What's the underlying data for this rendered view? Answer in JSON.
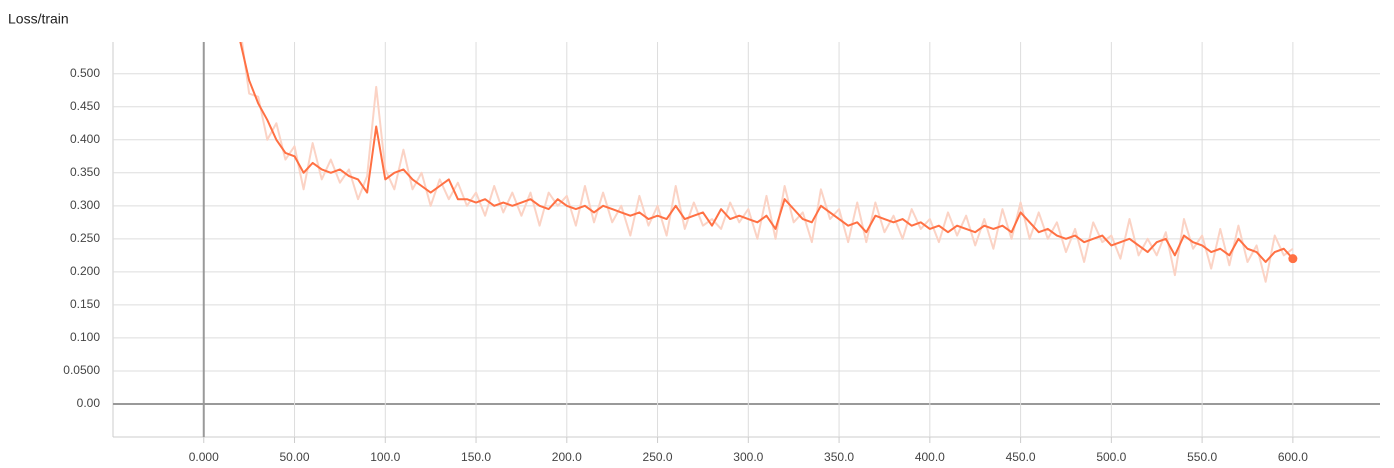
{
  "chart_data": {
    "type": "line",
    "title": "Loss/train",
    "x": [
      20,
      25,
      30,
      35,
      40,
      45,
      50,
      55,
      60,
      65,
      70,
      75,
      80,
      85,
      90,
      95,
      100,
      105,
      110,
      115,
      120,
      125,
      130,
      135,
      140,
      145,
      150,
      155,
      160,
      165,
      170,
      175,
      180,
      185,
      190,
      195,
      200,
      205,
      210,
      215,
      220,
      225,
      230,
      235,
      240,
      245,
      250,
      255,
      260,
      265,
      270,
      275,
      280,
      285,
      290,
      295,
      300,
      305,
      310,
      315,
      320,
      325,
      330,
      335,
      340,
      345,
      350,
      355,
      360,
      365,
      370,
      375,
      380,
      385,
      390,
      395,
      400,
      405,
      410,
      415,
      420,
      425,
      430,
      435,
      440,
      445,
      450,
      455,
      460,
      465,
      470,
      475,
      480,
      485,
      490,
      495,
      500,
      505,
      510,
      515,
      520,
      525,
      530,
      535,
      540,
      545,
      550,
      555,
      560,
      565,
      570,
      575,
      580,
      585,
      590,
      595,
      600
    ],
    "series": [
      {
        "color": "#fbd3c5",
        "values": [
          0.57,
          0.47,
          0.465,
          0.4,
          0.425,
          0.37,
          0.39,
          0.325,
          0.395,
          0.34,
          0.37,
          0.335,
          0.355,
          0.31,
          0.345,
          0.48,
          0.355,
          0.325,
          0.385,
          0.325,
          0.35,
          0.3,
          0.34,
          0.31,
          0.335,
          0.3,
          0.32,
          0.285,
          0.33,
          0.29,
          0.32,
          0.285,
          0.32,
          0.27,
          0.32,
          0.3,
          0.315,
          0.27,
          0.33,
          0.275,
          0.32,
          0.275,
          0.3,
          0.255,
          0.315,
          0.27,
          0.3,
          0.255,
          0.33,
          0.265,
          0.305,
          0.27,
          0.28,
          0.265,
          0.305,
          0.275,
          0.295,
          0.25,
          0.315,
          0.25,
          0.33,
          0.275,
          0.29,
          0.245,
          0.325,
          0.28,
          0.295,
          0.245,
          0.305,
          0.245,
          0.305,
          0.26,
          0.285,
          0.25,
          0.295,
          0.265,
          0.28,
          0.245,
          0.29,
          0.255,
          0.285,
          0.24,
          0.28,
          0.235,
          0.295,
          0.25,
          0.305,
          0.25,
          0.29,
          0.25,
          0.275,
          0.23,
          0.265,
          0.215,
          0.275,
          0.245,
          0.255,
          0.22,
          0.28,
          0.225,
          0.25,
          0.225,
          0.26,
          0.195,
          0.28,
          0.235,
          0.255,
          0.205,
          0.265,
          0.21,
          0.27,
          0.215,
          0.24,
          0.185,
          0.255,
          0.225,
          0.235
        ]
      },
      {
        "color": "#ff7043",
        "values": [
          0.55,
          0.49,
          0.455,
          0.43,
          0.4,
          0.38,
          0.375,
          0.35,
          0.365,
          0.355,
          0.35,
          0.355,
          0.345,
          0.34,
          0.32,
          0.42,
          0.34,
          0.35,
          0.355,
          0.34,
          0.33,
          0.32,
          0.33,
          0.34,
          0.31,
          0.31,
          0.305,
          0.31,
          0.3,
          0.305,
          0.3,
          0.305,
          0.31,
          0.3,
          0.295,
          0.31,
          0.3,
          0.295,
          0.3,
          0.29,
          0.3,
          0.295,
          0.29,
          0.285,
          0.29,
          0.28,
          0.285,
          0.28,
          0.3,
          0.28,
          0.285,
          0.29,
          0.27,
          0.295,
          0.28,
          0.285,
          0.28,
          0.275,
          0.285,
          0.265,
          0.31,
          0.295,
          0.28,
          0.275,
          0.3,
          0.29,
          0.28,
          0.27,
          0.275,
          0.26,
          0.285,
          0.28,
          0.275,
          0.28,
          0.27,
          0.275,
          0.265,
          0.27,
          0.26,
          0.27,
          0.265,
          0.26,
          0.27,
          0.265,
          0.27,
          0.26,
          0.29,
          0.275,
          0.26,
          0.265,
          0.255,
          0.25,
          0.255,
          0.245,
          0.25,
          0.255,
          0.24,
          0.245,
          0.25,
          0.24,
          0.23,
          0.245,
          0.25,
          0.225,
          0.255,
          0.245,
          0.24,
          0.23,
          0.235,
          0.225,
          0.25,
          0.235,
          0.23,
          0.215,
          0.23,
          0.235,
          0.22
        ]
      }
    ],
    "xlim": [
      -50,
      648
    ],
    "ylim": [
      -0.05,
      0.548
    ],
    "xticks": [
      {
        "value": 0,
        "label": "0.000"
      },
      {
        "value": 50,
        "label": "50.00"
      },
      {
        "value": 100,
        "label": "100.0"
      },
      {
        "value": 150,
        "label": "150.0"
      },
      {
        "value": 200,
        "label": "200.0"
      },
      {
        "value": 250,
        "label": "250.0"
      },
      {
        "value": 300,
        "label": "300.0"
      },
      {
        "value": 350,
        "label": "350.0"
      },
      {
        "value": 400,
        "label": "400.0"
      },
      {
        "value": 450,
        "label": "450.0"
      },
      {
        "value": 500,
        "label": "500.0"
      },
      {
        "value": 550,
        "label": "550.0"
      },
      {
        "value": 600,
        "label": "600.0"
      }
    ],
    "yticks": [
      {
        "value": 0,
        "label": "0.00"
      },
      {
        "value": 0.05,
        "label": "0.0500"
      },
      {
        "value": 0.1,
        "label": "0.100"
      },
      {
        "value": 0.15,
        "label": "0.150"
      },
      {
        "value": 0.2,
        "label": "0.200"
      },
      {
        "value": 0.25,
        "label": "0.250"
      },
      {
        "value": 0.3,
        "label": "0.300"
      },
      {
        "value": 0.35,
        "label": "0.350"
      },
      {
        "value": 0.4,
        "label": "0.400"
      },
      {
        "value": 0.45,
        "label": "0.450"
      },
      {
        "value": 0.5,
        "label": "0.500"
      }
    ],
    "grid": true
  }
}
